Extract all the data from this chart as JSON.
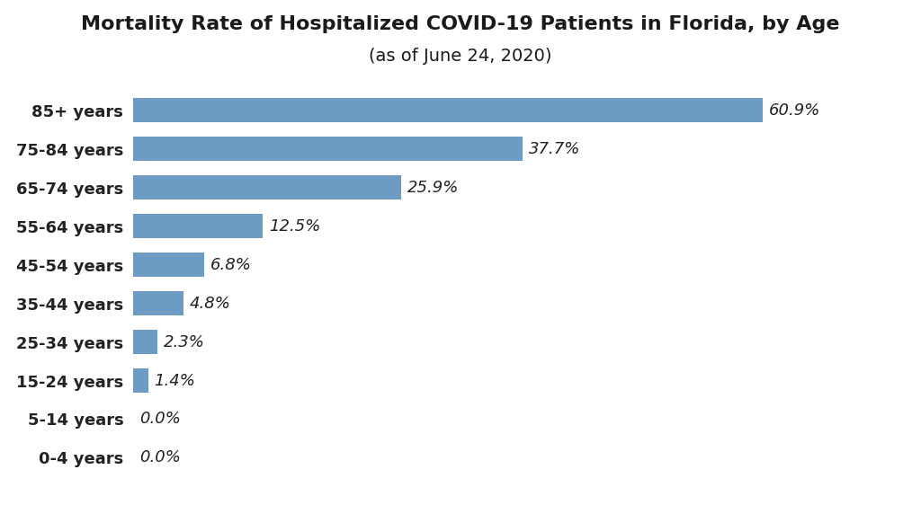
{
  "title": "Mortality Rate of Hospitalized COVID-19 Patients in Florida, by Age",
  "subtitle": "(as of June 24, 2020)",
  "categories": [
    "85+ years",
    "75-84 years",
    "65-74 years",
    "55-64 years",
    "45-54 years",
    "35-44 years",
    "25-34 years",
    "15-24 years",
    "5-14 years",
    "0-4 years"
  ],
  "values": [
    60.9,
    37.7,
    25.9,
    12.5,
    6.8,
    4.8,
    2.3,
    1.4,
    0.0,
    0.0
  ],
  "labels": [
    "60.9%",
    "37.7%",
    "25.9%",
    "12.5%",
    "6.8%",
    "4.8%",
    "2.3%",
    "1.4%",
    "0.0%",
    "0.0%"
  ],
  "bar_color": "#6d9bc3",
  "background_color": "#ffffff",
  "title_fontsize": 16,
  "subtitle_fontsize": 14,
  "label_fontsize": 13,
  "tick_fontsize": 13,
  "xlim": [
    0,
    70
  ]
}
